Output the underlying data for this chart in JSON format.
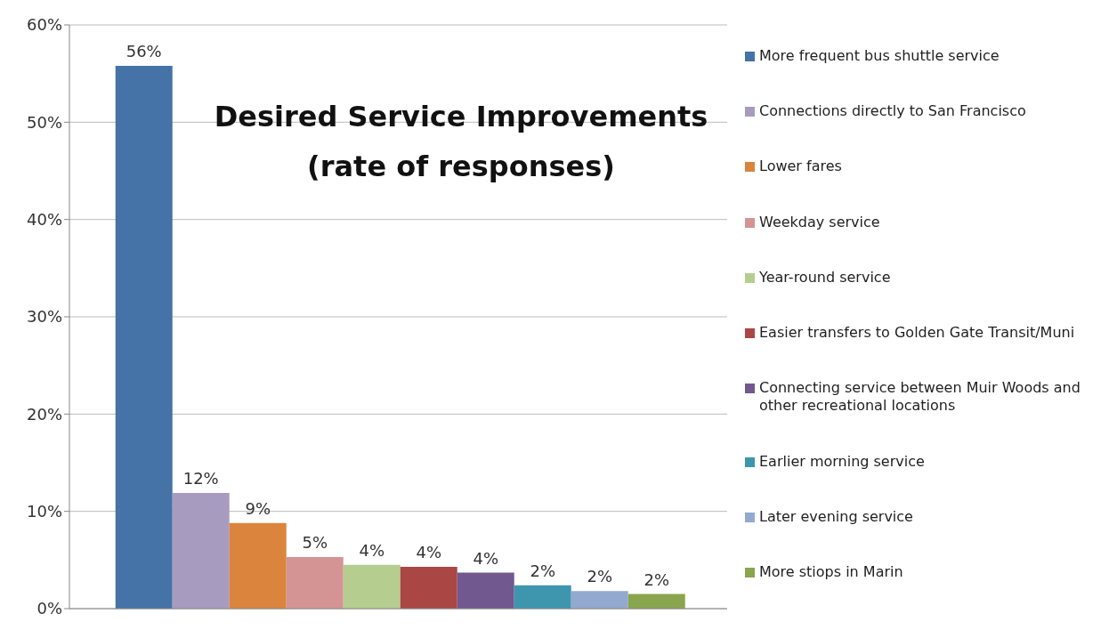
{
  "chart_data": {
    "type": "bar",
    "title": "Desired Service Improvements",
    "subtitle": "(rate of responses)",
    "categories": [
      null
    ],
    "series": [
      {
        "name": "More frequent bus shuttle service",
        "color": "#4572a7",
        "values": [
          55.8
        ],
        "value_labels": [
          "56%"
        ]
      },
      {
        "name": "Connections directly to San Francisco",
        "color": "#a89bc0",
        "values": [
          11.9
        ],
        "value_labels": [
          "12%"
        ]
      },
      {
        "name": "Lower fares",
        "color": "#db843d",
        "values": [
          8.8
        ],
        "value_labels": [
          "9%"
        ]
      },
      {
        "name": "Weekday service",
        "color": "#d49494",
        "values": [
          5.3
        ],
        "value_labels": [
          "5%"
        ]
      },
      {
        "name": "Year-round service",
        "color": "#b5cd8f",
        "values": [
          4.5
        ],
        "value_labels": [
          "4%"
        ]
      },
      {
        "name": "Easier transfers to Golden Gate Transit/Muni",
        "color": "#aa4643",
        "values": [
          4.3
        ],
        "value_labels": [
          "4%"
        ]
      },
      {
        "name": "Connecting service between Muir Woods and other recreational locations",
        "color": "#71588f",
        "values": [
          3.7
        ],
        "value_labels": [
          "4%"
        ]
      },
      {
        "name": "Earlier morning service",
        "color": "#3d96ae",
        "values": [
          2.4
        ],
        "value_labels": [
          "2%"
        ]
      },
      {
        "name": "Later evening service",
        "color": "#93a9d0",
        "values": [
          1.8
        ],
        "value_labels": [
          "2%"
        ]
      },
      {
        "name": "More stiops in Marin",
        "color": "#89a54e",
        "values": [
          1.5
        ],
        "value_labels": [
          "2%"
        ]
      }
    ],
    "ylim": [
      0,
      60
    ],
    "yticks": [
      {
        "value": 0,
        "label": "0%"
      },
      {
        "value": 10,
        "label": "10%"
      },
      {
        "value": 20,
        "label": "20%"
      },
      {
        "value": 30,
        "label": "30%"
      },
      {
        "value": 40,
        "label": "40%"
      },
      {
        "value": 50,
        "label": "50%"
      },
      {
        "value": 60,
        "label": "60%"
      }
    ],
    "grid": "y",
    "legend": "right"
  }
}
